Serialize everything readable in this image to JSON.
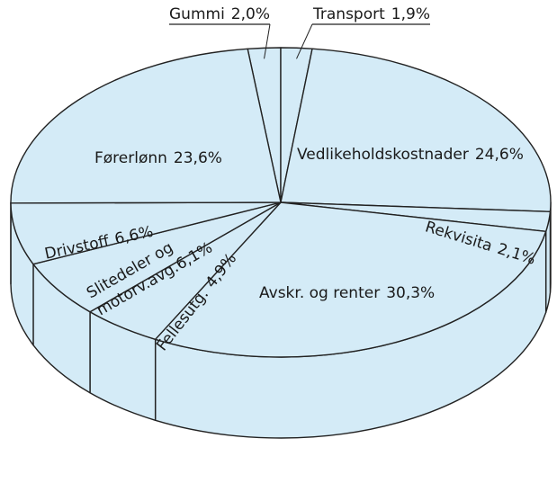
{
  "chart_data": {
    "type": "pie",
    "categories": [
      "Gummi",
      "Transport",
      "Vedlikeholdskostnader",
      "Rekvisita",
      "Avskr. og renter",
      "Fellesutg.",
      "Slitedeler og motorv.avg.",
      "Drivstoff",
      "Førerlønn"
    ],
    "values": [
      2.0,
      1.9,
      24.6,
      2.1,
      30.3,
      4.9,
      6.1,
      6.6,
      23.6
    ],
    "value_labels": [
      "2,0%",
      "1,9%",
      "24,6%",
      "2,1%",
      "30,3%",
      "4,9%",
      "6,1%",
      "6,6%",
      "23,6%"
    ],
    "color": "#d4ebf7"
  }
}
